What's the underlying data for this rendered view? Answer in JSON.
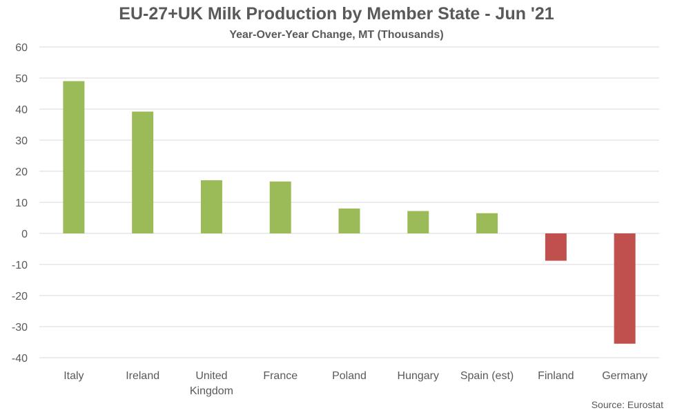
{
  "colors": {
    "positive": "#9BBB59",
    "negative": "#C0504D",
    "grid": "#D9D9D9",
    "axis_text": "#595959"
  },
  "chart_data": {
    "type": "bar",
    "title": "EU-27+UK Milk Production by Member State - Jun '21",
    "subtitle": "Year-Over-Year Change, MT (Thousands)",
    "source": "Source: Eurostat",
    "categories": [
      "Italy",
      "Ireland",
      "United Kingdom",
      "France",
      "Poland",
      "Hungary",
      "Spain (est)",
      "Finland",
      "Germany"
    ],
    "values": [
      49.0,
      39.2,
      17.1,
      16.7,
      8.0,
      7.2,
      6.5,
      -8.8,
      -35.5
    ],
    "ylim": [
      -40,
      60
    ],
    "yticks": [
      60,
      50,
      40,
      30,
      20,
      10,
      0,
      -10,
      -20,
      -30,
      -40
    ],
    "grid": true,
    "legend": "none"
  }
}
